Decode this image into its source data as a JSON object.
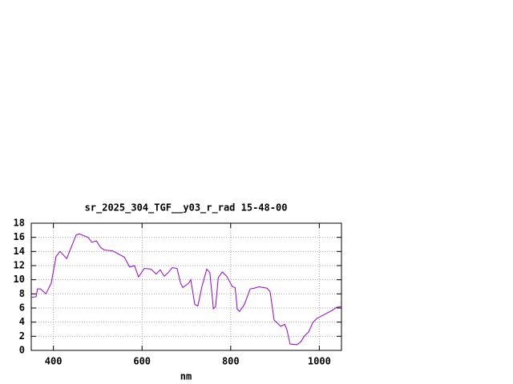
{
  "chart_data": {
    "type": "line",
    "title": "sr_2025_304_TGF__y03_r_rad 15-48-00",
    "x_label": "nm",
    "xlim": [
      350,
      1050
    ],
    "ylim": [
      0,
      18
    ],
    "xticks": [
      400,
      600,
      800,
      1000
    ],
    "yticks": [
      0,
      2,
      4,
      6,
      8,
      10,
      12,
      14,
      16,
      18
    ],
    "grid": true,
    "x": [
      350,
      361,
      364,
      371,
      383,
      395,
      406,
      415,
      430,
      451,
      458,
      478,
      487,
      497,
      506,
      515,
      533,
      542,
      560,
      572,
      583,
      592,
      605,
      620,
      632,
      641,
      650,
      659,
      668,
      679,
      687,
      692,
      705,
      710,
      719,
      726,
      735,
      746,
      753,
      761,
      766,
      772,
      781,
      791,
      804,
      810,
      815,
      820,
      831,
      844,
      853,
      864,
      882,
      889,
      898,
      913,
      922,
      927,
      934,
      949,
      958,
      967,
      976,
      985,
      994,
      1003,
      1012,
      1021,
      1030,
      1039,
      1050
    ],
    "series": [
      {
        "name": "sr_2025_304_TGF__y03_r_rad",
        "color": "#9400d3",
        "values": [
          7.5,
          7.6,
          8.7,
          8.7,
          8.0,
          9.5,
          13.3,
          14.0,
          13.0,
          16.3,
          16.5,
          16.0,
          15.3,
          15.5,
          14.6,
          14.2,
          14.1,
          13.8,
          13.2,
          11.8,
          12.0,
          10.4,
          11.6,
          11.5,
          10.8,
          11.4,
          10.5,
          11.0,
          11.7,
          11.6,
          9.5,
          8.9,
          9.5,
          10.0,
          6.5,
          6.3,
          9.0,
          11.5,
          11.0,
          5.9,
          6.2,
          10.3,
          11.1,
          10.5,
          9.0,
          8.9,
          5.8,
          5.5,
          6.5,
          8.7,
          8.8,
          9.0,
          8.8,
          8.3,
          4.3,
          3.4,
          3.7,
          2.9,
          0.9,
          0.8,
          1.2,
          2.1,
          2.6,
          3.9,
          4.5,
          4.8,
          5.1,
          5.4,
          5.7,
          6.1,
          6.2
        ]
      }
    ]
  }
}
